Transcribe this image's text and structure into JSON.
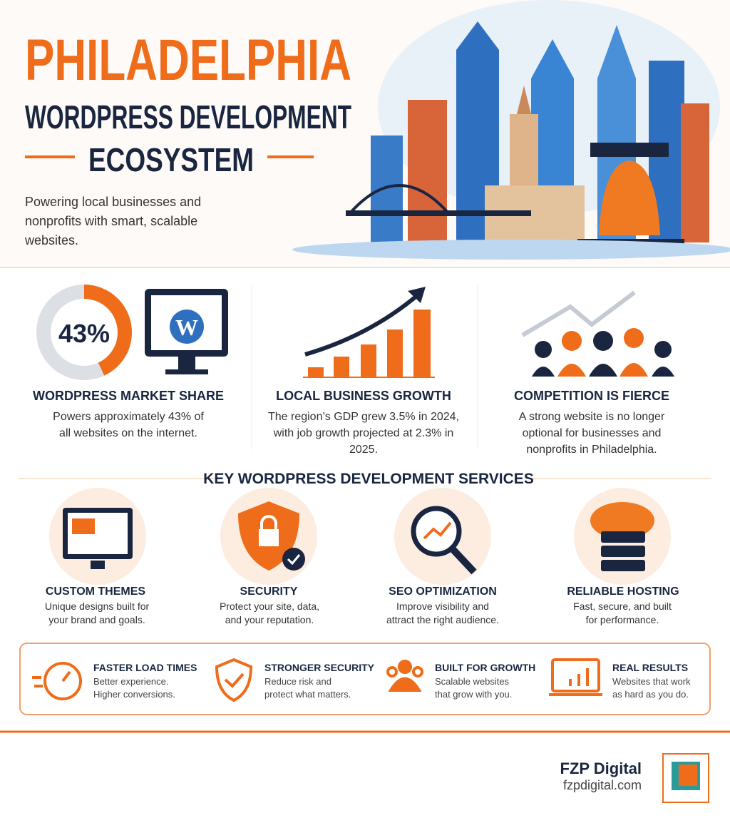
{
  "header": {
    "title": "PHILADELPHIA",
    "subtitle": "WORDPRESS DEVELOPMENT",
    "subtitle2": "ECOSYSTEM",
    "tagline": "Powering local businesses and nonprofits with smart, scalable websites."
  },
  "stats": [
    {
      "value": 43,
      "value_label": "43%",
      "title": "WORDPRESS MARKET SHARE",
      "text": "Powers approximately 43% of all websites on the internet."
    },
    {
      "title": "LOCAL BUSINESS GROWTH",
      "text": "The region’s GDP grew 3.5% in 2024, with job growth projected at 2.3% in 2025."
    },
    {
      "title": "COMPETITION IS FIERCE",
      "text": "A strong website is no longer optional for businesses and nonprofits in Philadelphia."
    }
  ],
  "services": {
    "heading": "KEY WORDPRESS DEVELOPMENT SERVICES",
    "items": [
      {
        "title": "CUSTOM THEMES",
        "text": "Unique designs built for your brand and goals."
      },
      {
        "title": "SECURITY",
        "text": "Protect your site, data, and your reputation."
      },
      {
        "title": "SEO OPTIMIZATION",
        "text": "Improve visibility and attract the right audience."
      },
      {
        "title": "RELIABLE HOSTING",
        "text": "Fast, secure, and built for performance."
      }
    ]
  },
  "benefits": [
    {
      "title": "FASTER LOAD TIMES",
      "text": "Better experience. Higher conversions."
    },
    {
      "title": "STRONGER SECURITY",
      "text": "Reduce risk and protect what matters."
    },
    {
      "title": "BUILT FOR GROWTH",
      "text": "Scalable websites that grow with you."
    },
    {
      "title": "REAL RESULTS",
      "text": "Websites that work as hard as you do."
    }
  ],
  "footer": {
    "brand": "FZP Digital",
    "url": "fzpdigital.com"
  }
}
